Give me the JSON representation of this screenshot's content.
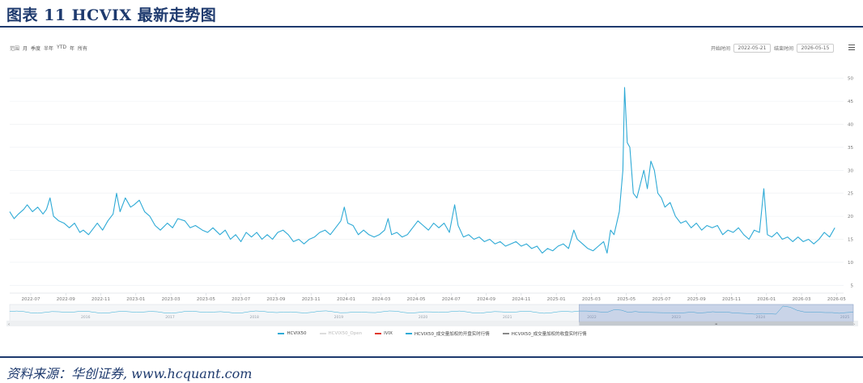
{
  "figure_title": "图表 11   HCVIX 最新走势图",
  "source": "资料来源：华创证券, www.hcquant.com",
  "toolbar": {
    "range_label": "范围",
    "ranges": [
      "月",
      "季度",
      "半年",
      "YTD",
      "年",
      "所有"
    ],
    "start_label": "开始时间",
    "start_value": "2022-05-21",
    "end_label": "结束时间",
    "end_value": "2026-05-15"
  },
  "legend": [
    {
      "label": "HCVIX50",
      "color": "#2eaad6",
      "active": true
    },
    {
      "label": "HCVIX50_Open",
      "color": "#cccccc",
      "active": false
    },
    {
      "label": "IVIX",
      "color": "#e0392b",
      "active": true
    },
    {
      "label": "HCVIX50_成交量加权的开盘实时行情",
      "color": "#2eaad6",
      "active": true
    },
    {
      "label": "HCVIX50_成交量加权的收盘实时行情",
      "color": "#888888",
      "active": true
    }
  ],
  "navigator": {
    "labels": [
      "2016",
      "2017",
      "2018",
      "2019",
      "2020",
      "2021",
      "2022",
      "2023",
      "2024",
      "2025"
    ],
    "selected_from_fraction": 0.675
  },
  "chart_data": {
    "type": "line",
    "x_axis_labels": [
      "2022-07",
      "2022-09",
      "2022-11",
      "2023-01",
      "2023-03",
      "2023-05",
      "2023-07",
      "2023-09",
      "2023-11",
      "2024-01",
      "2024-03",
      "2024-05",
      "2024-07",
      "2024-09",
      "2024-11",
      "2025-01",
      "2025-03",
      "2025-05",
      "2025-07",
      "2025-09",
      "2025-11",
      "2026-01",
      "2026-03",
      "2026-05"
    ],
    "yticks": [
      5,
      10,
      15,
      20,
      25,
      30,
      35,
      40,
      45,
      50
    ],
    "ylim": [
      4,
      54
    ],
    "xlim": [
      0,
      47.6
    ],
    "series": [
      {
        "name": "HCVIX50",
        "color": "#2eaad6",
        "points": [
          [
            0,
            21
          ],
          [
            0.25,
            19.5
          ],
          [
            0.5,
            20.5
          ],
          [
            0.8,
            21.5
          ],
          [
            1.0,
            22.5
          ],
          [
            1.3,
            21
          ],
          [
            1.6,
            22
          ],
          [
            1.9,
            20.5
          ],
          [
            2.1,
            21.5
          ],
          [
            2.3,
            24
          ],
          [
            2.5,
            20
          ],
          [
            2.8,
            19
          ],
          [
            3.1,
            18.5
          ],
          [
            3.4,
            17.5
          ],
          [
            3.7,
            18.5
          ],
          [
            4.0,
            16.5
          ],
          [
            4.2,
            17
          ],
          [
            4.5,
            16
          ],
          [
            4.8,
            17.5
          ],
          [
            5.0,
            18.5
          ],
          [
            5.3,
            17
          ],
          [
            5.6,
            19
          ],
          [
            5.9,
            20.5
          ],
          [
            6.1,
            25
          ],
          [
            6.3,
            21
          ],
          [
            6.6,
            24
          ],
          [
            6.9,
            22
          ],
          [
            7.1,
            22.5
          ],
          [
            7.4,
            23.5
          ],
          [
            7.7,
            21
          ],
          [
            8.0,
            20
          ],
          [
            8.3,
            18
          ],
          [
            8.6,
            17
          ],
          [
            9.0,
            18.5
          ],
          [
            9.3,
            17.5
          ],
          [
            9.6,
            19.5
          ],
          [
            10.0,
            19
          ],
          [
            10.3,
            17.5
          ],
          [
            10.6,
            18
          ],
          [
            11.0,
            17
          ],
          [
            11.3,
            16.5
          ],
          [
            11.6,
            17.5
          ],
          [
            12.0,
            16
          ],
          [
            12.3,
            17
          ],
          [
            12.6,
            15
          ],
          [
            12.9,
            16
          ],
          [
            13.2,
            14.5
          ],
          [
            13.5,
            16.5
          ],
          [
            13.8,
            15.5
          ],
          [
            14.1,
            16.5
          ],
          [
            14.4,
            15
          ],
          [
            14.7,
            16
          ],
          [
            15.0,
            15
          ],
          [
            15.3,
            16.5
          ],
          [
            15.6,
            17
          ],
          [
            15.9,
            16
          ],
          [
            16.2,
            14.5
          ],
          [
            16.5,
            15
          ],
          [
            16.8,
            14
          ],
          [
            17.1,
            15
          ],
          [
            17.4,
            15.5
          ],
          [
            17.7,
            16.5
          ],
          [
            18.0,
            17
          ],
          [
            18.3,
            16
          ],
          [
            18.6,
            17.5
          ],
          [
            18.9,
            19
          ],
          [
            19.1,
            22
          ],
          [
            19.3,
            18.5
          ],
          [
            19.6,
            18
          ],
          [
            19.9,
            16
          ],
          [
            20.2,
            17
          ],
          [
            20.5,
            16
          ],
          [
            20.8,
            15.5
          ],
          [
            21.1,
            16
          ],
          [
            21.4,
            17
          ],
          [
            21.6,
            19.5
          ],
          [
            21.8,
            16
          ],
          [
            22.1,
            16.5
          ],
          [
            22.4,
            15.5
          ],
          [
            22.7,
            16
          ],
          [
            23.0,
            17.5
          ],
          [
            23.3,
            19
          ],
          [
            23.6,
            18
          ],
          [
            23.9,
            17
          ],
          [
            24.2,
            18.5
          ],
          [
            24.5,
            17.5
          ],
          [
            24.8,
            18.5
          ],
          [
            25.1,
            16.5
          ],
          [
            25.4,
            22.5
          ],
          [
            25.6,
            18
          ],
          [
            25.9,
            15.5
          ],
          [
            26.2,
            16
          ],
          [
            26.5,
            15
          ],
          [
            26.8,
            15.5
          ],
          [
            27.1,
            14.5
          ],
          [
            27.4,
            15
          ],
          [
            27.7,
            14
          ],
          [
            28.0,
            14.5
          ],
          [
            28.3,
            13.5
          ],
          [
            28.6,
            14
          ],
          [
            28.9,
            14.5
          ],
          [
            29.2,
            13.5
          ],
          [
            29.5,
            14
          ],
          [
            29.8,
            13
          ],
          [
            30.1,
            13.5
          ],
          [
            30.4,
            12
          ],
          [
            30.7,
            13
          ],
          [
            31.0,
            12.5
          ],
          [
            31.3,
            13.5
          ],
          [
            31.6,
            14
          ],
          [
            31.9,
            13
          ],
          [
            32.2,
            17
          ],
          [
            32.4,
            15
          ],
          [
            32.7,
            14
          ],
          [
            33.0,
            13
          ],
          [
            33.3,
            12.5
          ],
          [
            33.6,
            13.5
          ],
          [
            33.9,
            14.5
          ],
          [
            34.1,
            12
          ],
          [
            34.3,
            17
          ],
          [
            34.5,
            16
          ],
          [
            34.8,
            21
          ],
          [
            35.0,
            30
          ],
          [
            35.1,
            48
          ],
          [
            35.25,
            36
          ],
          [
            35.4,
            35
          ],
          [
            35.6,
            25
          ],
          [
            35.8,
            24
          ],
          [
            36.0,
            27
          ],
          [
            36.2,
            30
          ],
          [
            36.4,
            26
          ],
          [
            36.6,
            32
          ],
          [
            36.8,
            30
          ],
          [
            37.0,
            25
          ],
          [
            37.2,
            24
          ],
          [
            37.4,
            22
          ],
          [
            37.7,
            23
          ],
          [
            38.0,
            20
          ],
          [
            38.3,
            18.5
          ],
          [
            38.6,
            19
          ],
          [
            38.9,
            17.5
          ],
          [
            39.2,
            18.5
          ],
          [
            39.5,
            17
          ],
          [
            39.8,
            18
          ],
          [
            40.1,
            17.5
          ],
          [
            40.4,
            18
          ],
          [
            40.7,
            16
          ],
          [
            41.0,
            17
          ],
          [
            41.3,
            16.5
          ],
          [
            41.6,
            17.5
          ],
          [
            41.9,
            16
          ],
          [
            42.2,
            15
          ],
          [
            42.5,
            17
          ],
          [
            42.8,
            16.5
          ],
          [
            43.05,
            26
          ],
          [
            43.25,
            16
          ],
          [
            43.5,
            15.5
          ],
          [
            43.8,
            16.5
          ],
          [
            44.1,
            15
          ],
          [
            44.4,
            15.5
          ],
          [
            44.7,
            14.5
          ],
          [
            45.0,
            15.5
          ],
          [
            45.3,
            14.5
          ],
          [
            45.6,
            15
          ],
          [
            45.9,
            14
          ],
          [
            46.2,
            15
          ],
          [
            46.5,
            16.5
          ],
          [
            46.8,
            15.5
          ],
          [
            47.1,
            17.5
          ]
        ]
      }
    ]
  }
}
